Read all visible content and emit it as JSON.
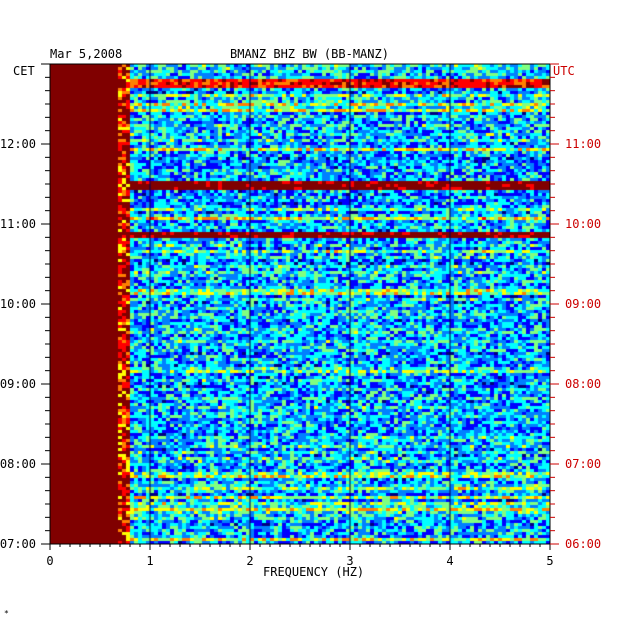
{
  "header": {
    "date": "Mar 5,2008",
    "station": "BMANZ BHZ BW (BB-MANZ)",
    "left_zone": "CET",
    "right_zone": "UTC"
  },
  "chart_data": {
    "type": "heatmap",
    "title": "BMANZ BHZ BW (BB-MANZ)",
    "date": "Mar 5,2008",
    "xlabel": "FREQUENCY (HZ)",
    "xlim": [
      0,
      5
    ],
    "x_ticks": [
      "0",
      "1",
      "2",
      "3",
      "4",
      "5"
    ],
    "left_axis": {
      "zone": "CET",
      "ticks": [
        "07:00",
        "08:00",
        "09:00",
        "10:00",
        "11:00",
        "12:00"
      ],
      "range_hours": [
        7.0,
        13.0
      ]
    },
    "right_axis": {
      "zone": "UTC",
      "ticks": [
        "06:00",
        "07:00",
        "08:00",
        "09:00",
        "10:00",
        "11:00"
      ],
      "range_hours": [
        6.0,
        12.0
      ]
    },
    "minor_ticks_per_hour": 6,
    "colormap": [
      "#00007f",
      "#0000ff",
      "#0080ff",
      "#00ffff",
      "#80ff80",
      "#ffff00",
      "#ff8000",
      "#ff0000",
      "#800000"
    ],
    "low_frequency_saturation_hz": 0.65,
    "strong_bands": [
      {
        "time_cet": "11:30",
        "level": "high"
      },
      {
        "time_cet": "10:53",
        "level": "high"
      },
      {
        "time_cet": "12:46",
        "level": "medium"
      }
    ],
    "data_columns_hz": [
      1.0,
      2.0,
      3.0,
      4.0
    ]
  },
  "footer": {
    "mark": "*"
  }
}
